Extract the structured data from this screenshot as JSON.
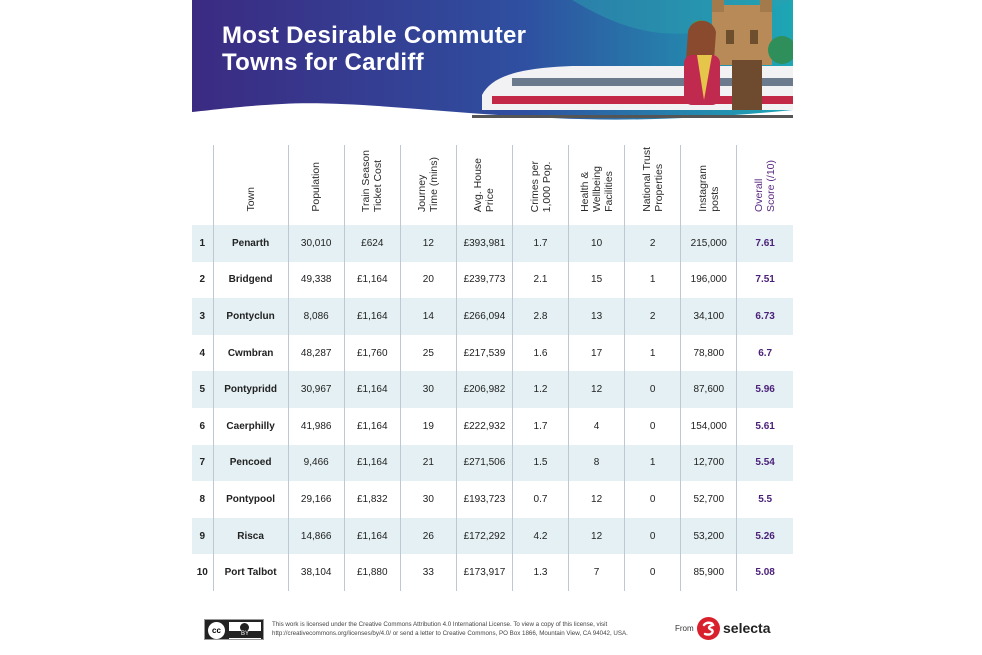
{
  "title_line1": "Most Desirable Commuter",
  "title_line2": "Towns for Cardiff",
  "colors": {
    "banner_dark": "#3b2a82",
    "banner_teal": "#1ea7b5",
    "row_shade": "#e4f0f3",
    "score_text": "#4a1f78",
    "brand_red": "#d9202d"
  },
  "chart_data": {
    "type": "table",
    "columns": [
      "",
      "Town",
      "Population",
      "Train Season Ticket Cost",
      "Journey Time (mins)",
      "Avg. House Price",
      "Crimes per 1,000 Pop.",
      "Health & Wellbeing Facilities",
      "National Trust Properties",
      "Instagram posts",
      "Overall Score (/10)"
    ],
    "rows": [
      [
        "1",
        "Penarth",
        "30,010",
        "£624",
        "12",
        "£393,981",
        "1.7",
        "10",
        "2",
        "215,000",
        "7.61"
      ],
      [
        "2",
        "Bridgend",
        "49,338",
        "£1,164",
        "20",
        "£239,773",
        "2.1",
        "15",
        "1",
        "196,000",
        "7.51"
      ],
      [
        "3",
        "Pontyclun",
        "8,086",
        "£1,164",
        "14",
        "£266,094",
        "2.8",
        "13",
        "2",
        "34,100",
        "6.73"
      ],
      [
        "4",
        "Cwmbran",
        "48,287",
        "£1,760",
        "25",
        "£217,539",
        "1.6",
        "17",
        "1",
        "78,800",
        "6.7"
      ],
      [
        "5",
        "Pontypridd",
        "30,967",
        "£1,164",
        "30",
        "£206,982",
        "1.2",
        "12",
        "0",
        "87,600",
        "5.96"
      ],
      [
        "6",
        "Caerphilly",
        "41,986",
        "£1,164",
        "19",
        "£222,932",
        "1.7",
        "4",
        "0",
        "154,000",
        "5.61"
      ],
      [
        "7",
        "Pencoed",
        "9,466",
        "£1,164",
        "21",
        "£271,506",
        "1.5",
        "8",
        "1",
        "12,700",
        "5.54"
      ],
      [
        "8",
        "Pontypool",
        "29,166",
        "£1,832",
        "30",
        "£193,723",
        "0.7",
        "12",
        "0",
        "52,700",
        "5.5"
      ],
      [
        "9",
        "Risca",
        "14,866",
        "£1,164",
        "26",
        "£172,292",
        "4.2",
        "12",
        "0",
        "53,200",
        "5.26"
      ],
      [
        "10",
        "Port Talbot",
        "38,104",
        "£1,880",
        "33",
        "£173,917",
        "1.3",
        "7",
        "0",
        "85,900",
        "5.08"
      ]
    ]
  },
  "header_lines": [
    "",
    "Town",
    "Population",
    "Train Season\nTicket Cost",
    "Journey\nTime (mins)",
    "Avg. House\nPrice",
    "Crimes per\n1,000 Pop.",
    "Health &\nWellbeing\nFacilities",
    "National Trust\nProperties",
    "Instagram\nposts",
    "Overall\nScore (/10)"
  ],
  "footer": {
    "cc_label": "cc",
    "by_label": "BY",
    "license_text": "This work is licensed under the Creative Commons Attribution 4.0 International License. To view a copy of this license, visit http://creativecommons.org/licenses/by/4.0/ or send a letter to Creative Commons, PO Box 1866, Mountain View, CA 94042, USA.",
    "from_label": "From",
    "brand": "selecta"
  }
}
